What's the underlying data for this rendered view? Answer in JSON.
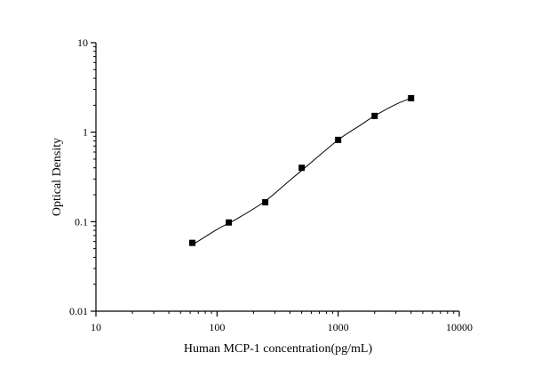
{
  "chart_data": {
    "type": "scatter",
    "xlabel": "Human MCP-1 concentration(pg/mL)",
    "ylabel": "Optical Density",
    "x_scale": "log",
    "y_scale": "log",
    "xlim": [
      10,
      10000
    ],
    "ylim": [
      0.01,
      10
    ],
    "x_ticks": [
      {
        "value": 10,
        "label": "10"
      },
      {
        "value": 100,
        "label": "100"
      },
      {
        "value": 1000,
        "label": "1000"
      },
      {
        "value": 10000,
        "label": "10000"
      }
    ],
    "y_ticks": [
      {
        "value": 0.01,
        "label": "0.01"
      },
      {
        "value": 0.1,
        "label": "0.1"
      },
      {
        "value": 1,
        "label": "1"
      },
      {
        "value": 10,
        "label": "10"
      }
    ],
    "grid": false,
    "series": [
      {
        "marker": "square",
        "color": "#000000",
        "points": [
          {
            "x": 62.5,
            "y": 0.058
          },
          {
            "x": 125,
            "y": 0.098
          },
          {
            "x": 250,
            "y": 0.165
          },
          {
            "x": 500,
            "y": 0.4
          },
          {
            "x": 1000,
            "y": 0.82
          },
          {
            "x": 2000,
            "y": 1.52
          },
          {
            "x": 4000,
            "y": 2.4
          }
        ]
      }
    ],
    "fit_curve": {
      "color": "#000000",
      "points": [
        {
          "x": 62.5,
          "y": 0.055
        },
        {
          "x": 100,
          "y": 0.082
        },
        {
          "x": 150,
          "y": 0.11
        },
        {
          "x": 250,
          "y": 0.17
        },
        {
          "x": 400,
          "y": 0.29
        },
        {
          "x": 600,
          "y": 0.46
        },
        {
          "x": 1000,
          "y": 0.82
        },
        {
          "x": 1500,
          "y": 1.18
        },
        {
          "x": 2000,
          "y": 1.52
        },
        {
          "x": 3000,
          "y": 2.05
        },
        {
          "x": 4000,
          "y": 2.4
        }
      ]
    }
  }
}
